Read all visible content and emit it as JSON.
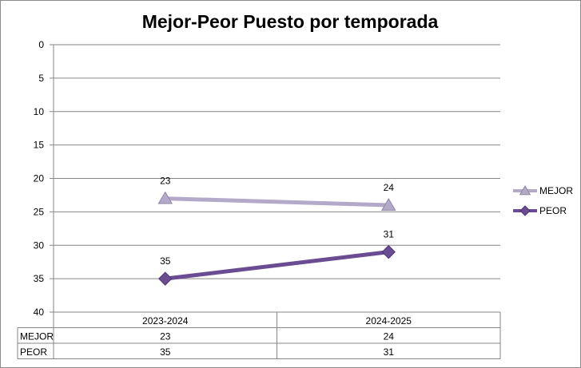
{
  "chart_data": {
    "type": "line",
    "title": "Mejor-Peor Puesto por temporada",
    "categories": [
      "2023-2024",
      "2024-2025"
    ],
    "ylim": [
      40,
      0
    ],
    "y_inverted": true,
    "y_ticks": [
      "0",
      "5",
      "10",
      "15",
      "20",
      "25",
      "30",
      "35",
      "40"
    ],
    "grid": true,
    "legend_position": "right",
    "data_table": true,
    "series": [
      {
        "name": "MEJOR",
        "values": [
          23,
          24
        ],
        "labels": [
          "23",
          "24"
        ],
        "color": "#b3a9c9",
        "marker": "triangle"
      },
      {
        "name": "PEOR",
        "values": [
          35,
          31
        ],
        "labels": [
          "35",
          "31"
        ],
        "color": "#6a4c93",
        "marker": "diamond"
      }
    ]
  }
}
